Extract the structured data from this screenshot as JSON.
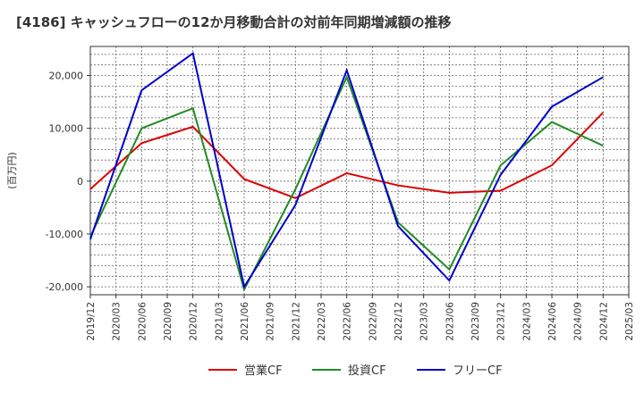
{
  "chart_data": {
    "type": "line",
    "title": "[4186]  キャッシュフローの12か月移動合計の対前年同期増減額の推移",
    "ylabel": "(百万円)",
    "xlabel": "",
    "ylim": [
      -21500,
      25500
    ],
    "y_ticks": [
      -20000,
      -10000,
      0,
      10000,
      20000
    ],
    "y_tick_labels": [
      "-20,000",
      "-10,000",
      "0",
      "10,000",
      "20,000"
    ],
    "x_ticks": [
      "2019/12",
      "2020/03",
      "2020/06",
      "2020/09",
      "2020/12",
      "2021/03",
      "2021/06",
      "2021/09",
      "2021/12",
      "2022/03",
      "2022/06",
      "2022/09",
      "2022/12",
      "2023/03",
      "2023/06",
      "2023/09",
      "2023/12",
      "2024/03",
      "2024/06",
      "2024/09",
      "2024/12",
      "2025/03"
    ],
    "grid": true,
    "legend_position": "bottom",
    "series": [
      {
        "name": "営業CF",
        "color": "#dd0000",
        "x": [
          "2019/12",
          "2020/06",
          "2020/12",
          "2021/06",
          "2021/12",
          "2022/06",
          "2022/12",
          "2023/06",
          "2023/12",
          "2024/06",
          "2024/12"
        ],
        "values": [
          -1500,
          7200,
          10300,
          400,
          -3200,
          1500,
          -800,
          -2200,
          -1800,
          3000,
          13000
        ]
      },
      {
        "name": "投資CF",
        "color": "#228b22",
        "x": [
          "2019/12",
          "2020/06",
          "2020/12",
          "2021/06",
          "2021/12",
          "2022/06",
          "2022/12",
          "2023/06",
          "2023/12",
          "2024/06",
          "2024/12"
        ],
        "values": [
          -10500,
          10000,
          13800,
          -20500,
          -1500,
          19700,
          -7800,
          -16700,
          3000,
          11200,
          6700
        ]
      },
      {
        "name": "フリーCF",
        "color": "#0000cc",
        "x": [
          "2019/12",
          "2020/06",
          "2020/12",
          "2021/06",
          "2021/12",
          "2022/06",
          "2022/12",
          "2023/06",
          "2023/12",
          "2024/06",
          "2024/12"
        ],
        "values": [
          -11000,
          17200,
          24200,
          -20000,
          -4500,
          21000,
          -8500,
          -18800,
          1200,
          14100,
          19700
        ]
      }
    ]
  }
}
